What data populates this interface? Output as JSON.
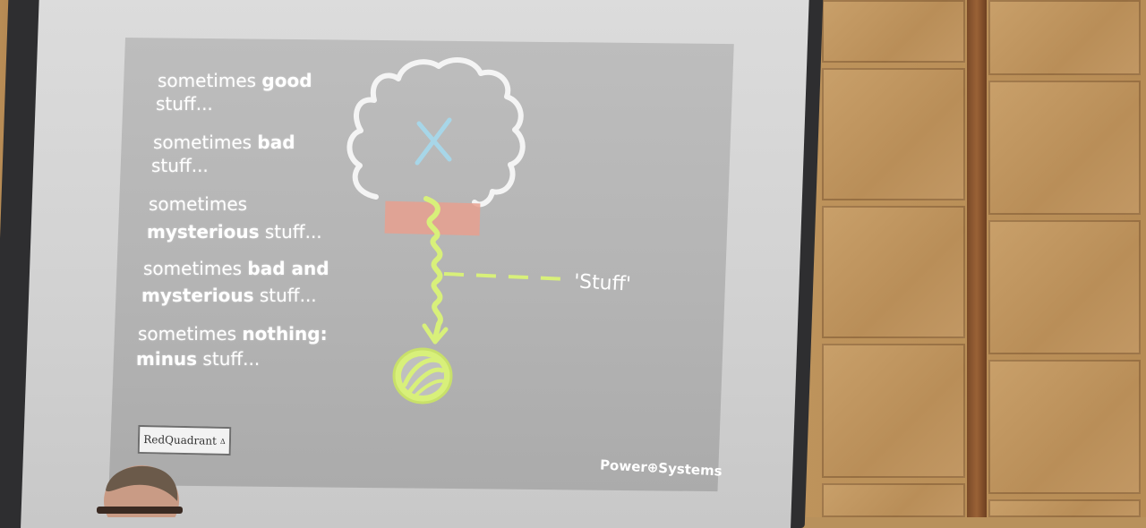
{
  "slide": {
    "lines": [
      {
        "text": "sometimes ",
        "bold": "good"
      },
      {
        "text": "stuff...",
        "bold": ""
      },
      {
        "text": "sometimes ",
        "bold": "bad"
      },
      {
        "text": "stuff...",
        "bold": ""
      },
      {
        "text": "sometimes",
        "bold": ""
      },
      {
        "text": "",
        "bold": "mysterious",
        "after": " stuff..."
      },
      {
        "text": "sometimes ",
        "bold": "bad and"
      },
      {
        "text": "",
        "bold": "mysterious",
        "after": " stuff..."
      },
      {
        "text": "sometimes ",
        "bold": "nothing:"
      },
      {
        "text": "",
        "bold": "minus",
        "after": " stuff..."
      }
    ],
    "cloud_mark": "X",
    "pointer_label": "'Stuff'",
    "logo_text": "RedQuadrant",
    "logo_mark": "Δ",
    "footer_brand": "Power⊕Systems"
  },
  "colors": {
    "screen": "#d3d3d3",
    "slide_bg": "#b4b4b4",
    "highlight": "#e8a08f",
    "squiggle": "#d8f07a",
    "x_mark": "#a7d6e8",
    "wood": "#c49a62"
  },
  "icons": [
    "cloud-icon",
    "x-mark-icon",
    "squiggle-arrow-icon",
    "globe-icon",
    "dashed-pointer-icon"
  ]
}
